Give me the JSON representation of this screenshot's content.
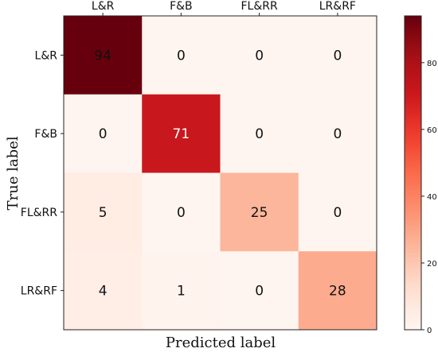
{
  "chart_data": {
    "type": "heatmap",
    "xlabel": "Predicted label",
    "ylabel": "True label",
    "x_categories": [
      "L&R",
      "F&B",
      "FL&RR",
      "LR&RF"
    ],
    "y_categories": [
      "L&R",
      "F&B",
      "FL&RR",
      "LR&RF"
    ],
    "values": [
      [
        94,
        0,
        0,
        0
      ],
      [
        0,
        71,
        0,
        0
      ],
      [
        5,
        0,
        25,
        0
      ],
      [
        4,
        1,
        0,
        28
      ]
    ],
    "colorbar": {
      "min": 0,
      "max": 94,
      "ticks": [
        0,
        20,
        40,
        60,
        80
      ],
      "colormap": "Reds"
    },
    "x_ticks_position": "top"
  }
}
